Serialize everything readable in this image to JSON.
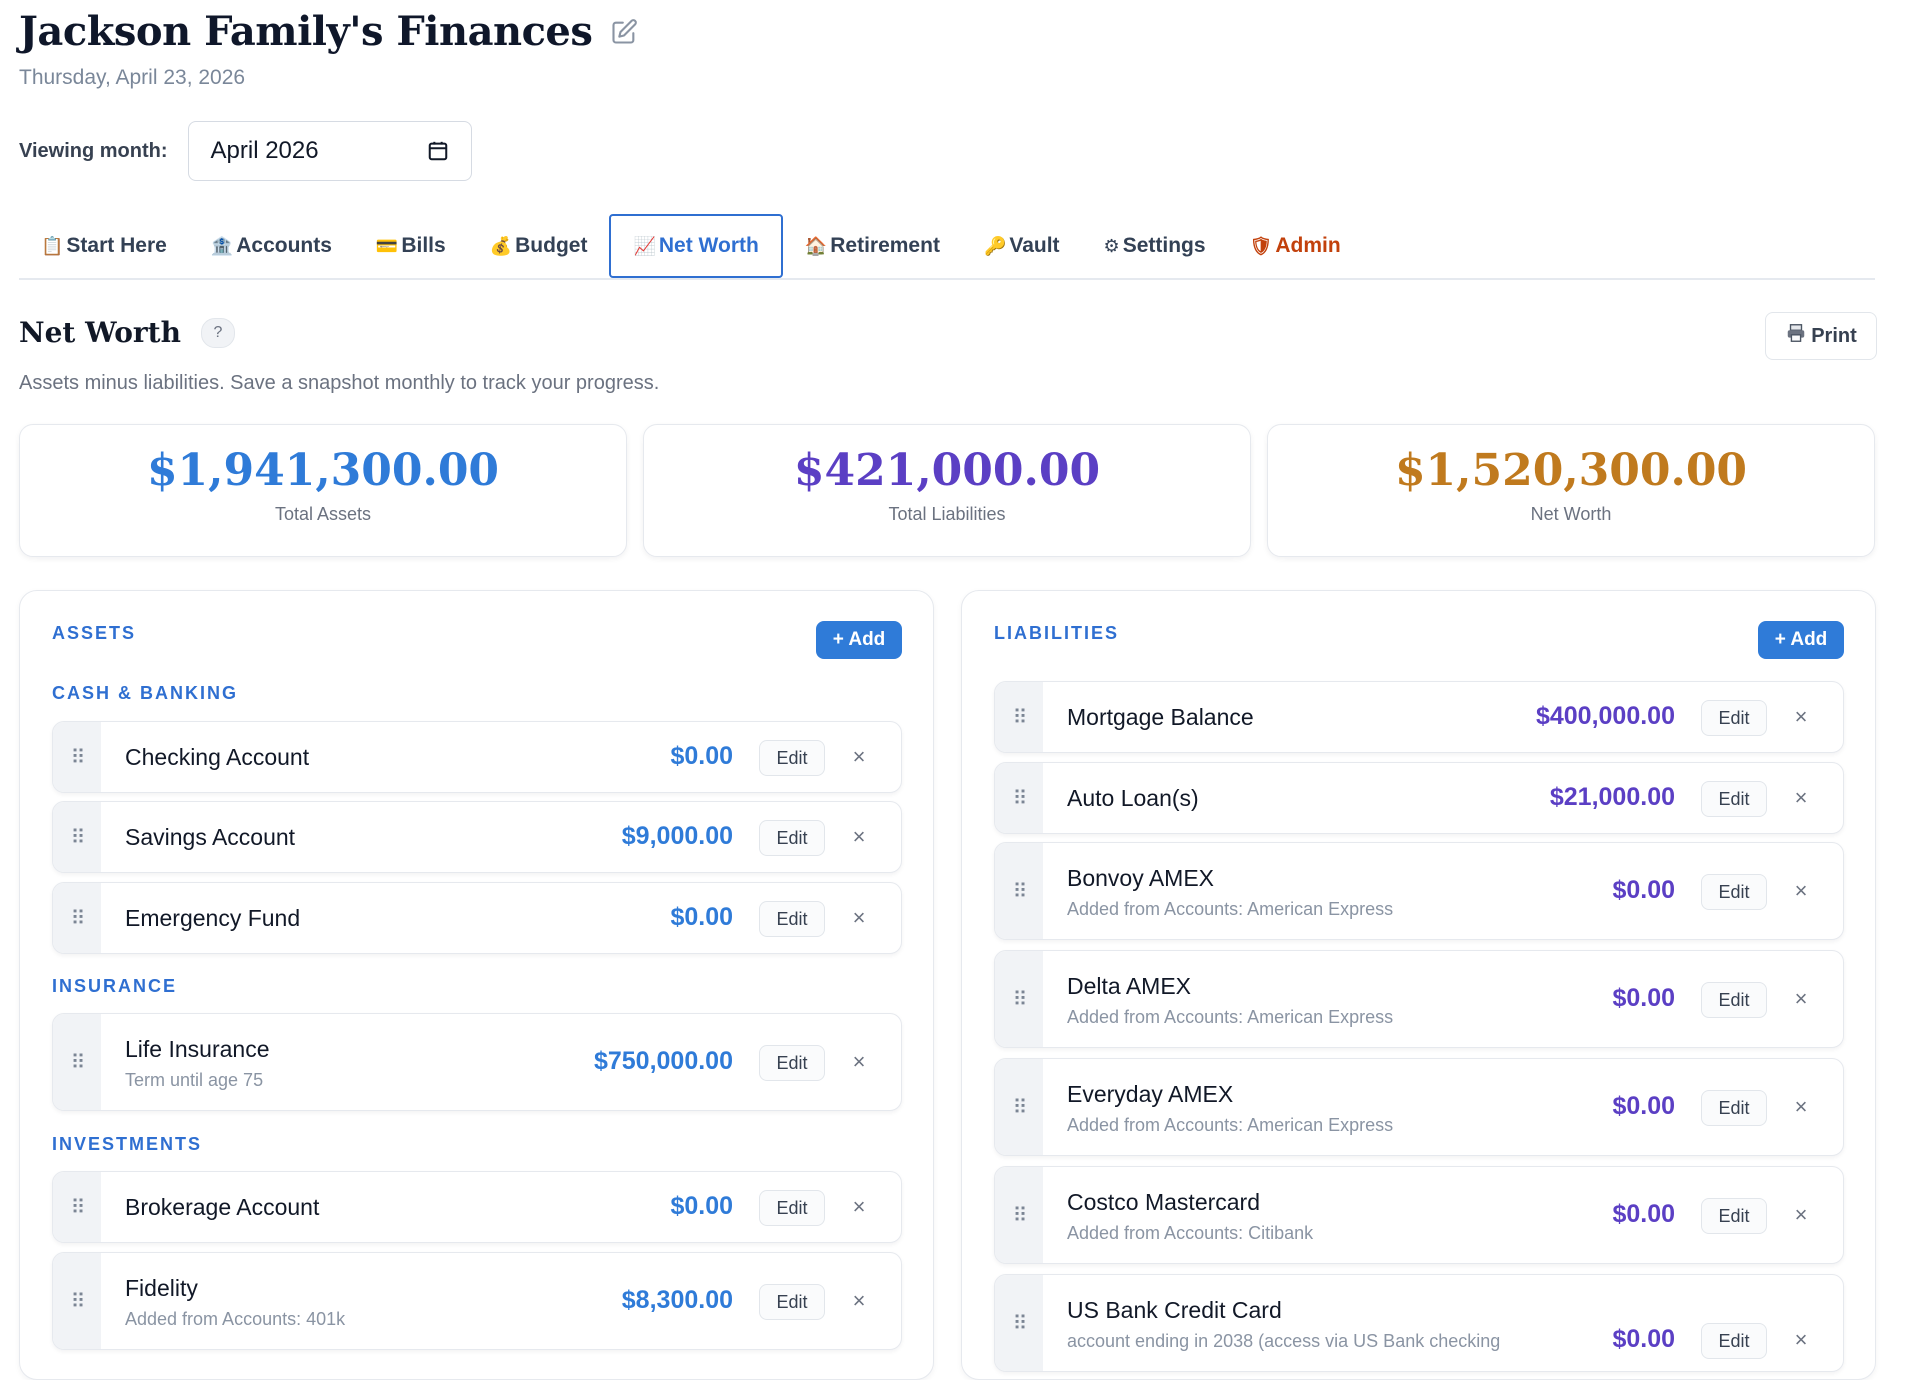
{
  "header": {
    "title": "Jackson Family's Finances",
    "date": "Thursday, April 23, 2026",
    "month_label": "Viewing month:",
    "month_value": "April 2026"
  },
  "tabs": [
    {
      "icon": "📋",
      "label": "Start Here"
    },
    {
      "icon": "🏦",
      "label": "Accounts"
    },
    {
      "icon": "💳",
      "label": "Bills"
    },
    {
      "icon": "💰",
      "label": "Budget"
    },
    {
      "icon": "📈",
      "label": "Net Worth",
      "active": true
    },
    {
      "icon": "🏠",
      "label": "Retirement"
    },
    {
      "icon": "🔑",
      "label": "Vault"
    },
    {
      "icon": "⚙",
      "label": "Settings"
    },
    {
      "icon": "🛡",
      "label": "Admin"
    }
  ],
  "section": {
    "title": "Net Worth",
    "help": "?",
    "print_label": "Print",
    "subtitle": "Assets minus liabilities. Save a snapshot monthly to track your progress."
  },
  "summary": {
    "assets_value": "$1,941,300.00",
    "assets_label": "Total Assets",
    "liabilities_value": "$421,000.00",
    "liabilities_label": "Total Liabilities",
    "networth_value": "$1,520,300.00",
    "networth_label": "Net Worth"
  },
  "colors": {
    "accent": "#2f6fd1",
    "assets": "#2f7bd8",
    "liabilities": "#5b3fc4",
    "networth": "#c07a1e",
    "admin": "#c2410c"
  },
  "assets": {
    "heading": "ASSETS",
    "add_label": "+ Add",
    "edit_label": "Edit",
    "categories": [
      {
        "name": "CASH & BANKING",
        "items": [
          {
            "name": "Checking Account",
            "note": "",
            "amount": "$0.00"
          },
          {
            "name": "Savings Account",
            "note": "",
            "amount": "$9,000.00"
          },
          {
            "name": "Emergency Fund",
            "note": "",
            "amount": "$0.00"
          }
        ]
      },
      {
        "name": "INSURANCE",
        "items": [
          {
            "name": "Life Insurance",
            "note": "Term until age 75",
            "amount": "$750,000.00"
          }
        ]
      },
      {
        "name": "INVESTMENTS",
        "items": [
          {
            "name": "Brokerage Account",
            "note": "",
            "amount": "$0.00"
          },
          {
            "name": "Fidelity",
            "note": "Added from Accounts: 401k",
            "amount": "$8,300.00"
          }
        ]
      }
    ]
  },
  "liabilities": {
    "heading": "LIABILITIES",
    "add_label": "+ Add",
    "edit_label": "Edit",
    "items": [
      {
        "name": "Mortgage Balance",
        "note": "",
        "amount": "$400,000.00"
      },
      {
        "name": "Auto Loan(s)",
        "note": "",
        "amount": "$21,000.00"
      },
      {
        "name": "Bonvoy AMEX",
        "note": "Added from Accounts: American Express",
        "amount": "$0.00"
      },
      {
        "name": "Delta AMEX",
        "note": "Added from Accounts: American Express",
        "amount": "$0.00"
      },
      {
        "name": "Everyday AMEX",
        "note": "Added from Accounts: American Express",
        "amount": "$0.00"
      },
      {
        "name": "Costco Mastercard",
        "note": "Added from Accounts: Citibank",
        "amount": "$0.00"
      },
      {
        "name": "US Bank Credit Card",
        "note": "account ending in 2038 (access via US Bank checking",
        "amount": "$0.00"
      }
    ]
  }
}
